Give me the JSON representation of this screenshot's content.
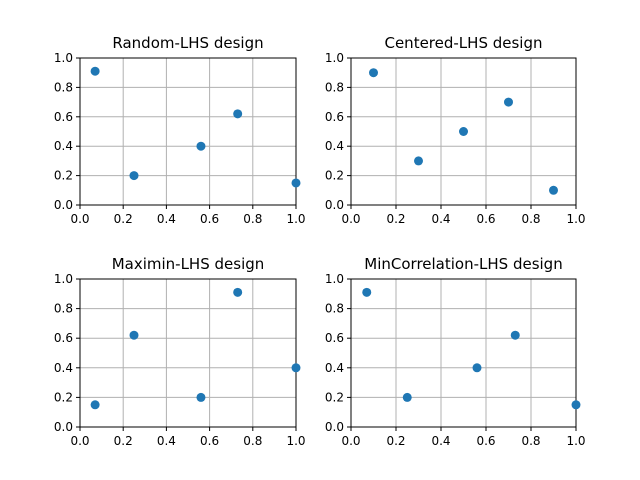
{
  "chart_data": [
    {
      "type": "scatter",
      "title": "Random-LHS design",
      "xlim": [
        0,
        1
      ],
      "ylim": [
        0,
        1
      ],
      "xticks": [
        "0.0",
        "0.2",
        "0.4",
        "0.6",
        "0.8",
        "1.0"
      ],
      "yticks": [
        "0.0",
        "0.2",
        "0.4",
        "0.6",
        "0.8",
        "1.0"
      ],
      "grid": true,
      "color": "#1f77b4",
      "x": [
        0.07,
        0.25,
        0.56,
        0.73,
        1.0
      ],
      "y": [
        0.91,
        0.2,
        0.4,
        0.62,
        0.15
      ]
    },
    {
      "type": "scatter",
      "title": "Centered-LHS design",
      "xlim": [
        0,
        1
      ],
      "ylim": [
        0,
        1
      ],
      "xticks": [
        "0.0",
        "0.2",
        "0.4",
        "0.6",
        "0.8",
        "1.0"
      ],
      "yticks": [
        "0.0",
        "0.2",
        "0.4",
        "0.6",
        "0.8",
        "1.0"
      ],
      "grid": true,
      "color": "#1f77b4",
      "x": [
        0.1,
        0.3,
        0.5,
        0.7,
        0.9
      ],
      "y": [
        0.9,
        0.3,
        0.5,
        0.7,
        0.1
      ]
    },
    {
      "type": "scatter",
      "title": "Maximin-LHS design",
      "xlim": [
        0,
        1
      ],
      "ylim": [
        0,
        1
      ],
      "xticks": [
        "0.0",
        "0.2",
        "0.4",
        "0.6",
        "0.8",
        "1.0"
      ],
      "yticks": [
        "0.0",
        "0.2",
        "0.4",
        "0.6",
        "0.8",
        "1.0"
      ],
      "grid": true,
      "color": "#1f77b4",
      "x": [
        0.07,
        0.25,
        0.56,
        0.73,
        1.0
      ],
      "y": [
        0.15,
        0.62,
        0.2,
        0.91,
        0.4
      ]
    },
    {
      "type": "scatter",
      "title": "MinCorrelation-LHS design",
      "xlim": [
        0,
        1
      ],
      "ylim": [
        0,
        1
      ],
      "xticks": [
        "0.0",
        "0.2",
        "0.4",
        "0.6",
        "0.8",
        "1.0"
      ],
      "yticks": [
        "0.0",
        "0.2",
        "0.4",
        "0.6",
        "0.8",
        "1.0"
      ],
      "grid": true,
      "color": "#1f77b4",
      "x": [
        0.07,
        0.25,
        0.56,
        0.73,
        1.0
      ],
      "y": [
        0.91,
        0.2,
        0.4,
        0.62,
        0.15
      ]
    }
  ]
}
